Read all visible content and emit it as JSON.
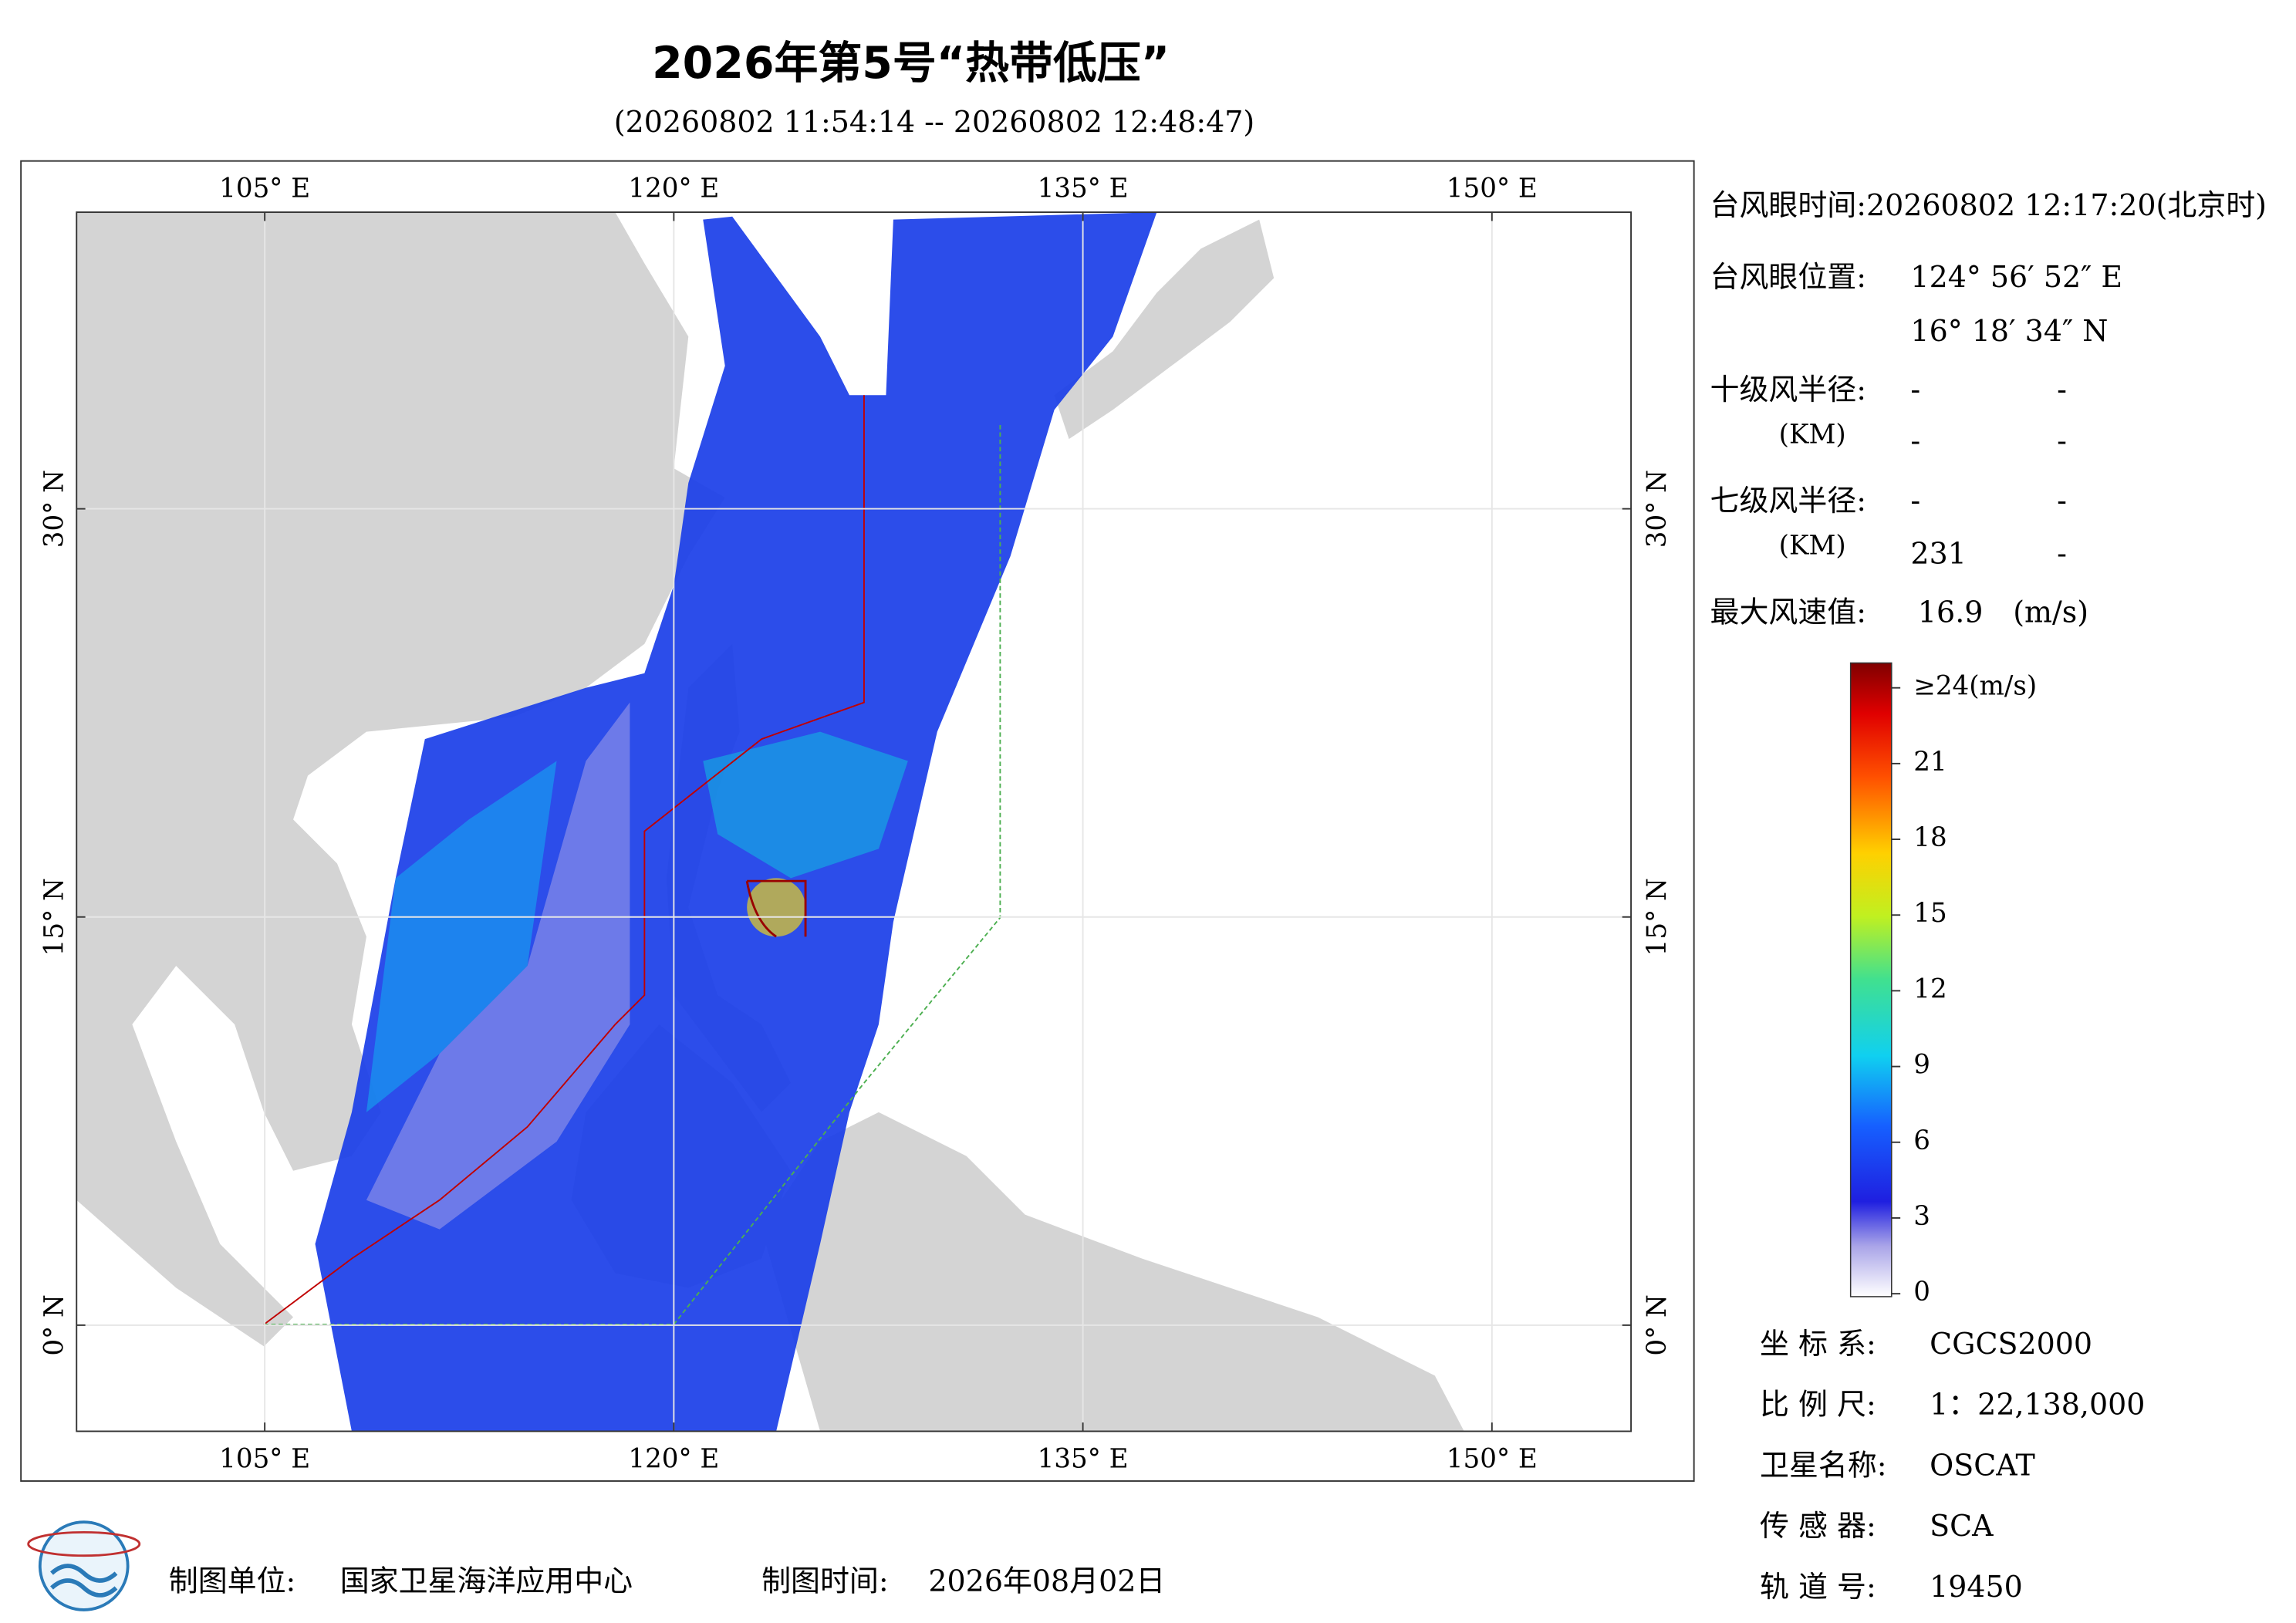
{
  "title": "2026年第5号“热带低压”",
  "subtitle": "(20260802 11:54:14 -- 20260802 12:48:47)",
  "map": {
    "xlim": [
      98.1,
      155.1
    ],
    "ylim": [
      -3.9,
      40.9
    ],
    "xticks": [
      {
        "value": 105,
        "label": "105° E"
      },
      {
        "value": 120,
        "label": "120° E"
      },
      {
        "value": 135,
        "label": "135° E"
      },
      {
        "value": 150,
        "label": "150° E"
      }
    ],
    "yticks": [
      {
        "value": 0,
        "label": "0° N"
      },
      {
        "value": 15,
        "label": "15° N"
      },
      {
        "value": 30,
        "label": "30° N"
      }
    ],
    "grid": true
  },
  "info": {
    "eye_time": "台风眼时间:20260802 12:17:20(北京时)",
    "eye_position_label": "台风眼位置:",
    "eye_lon": "124° 56′ 52″ E",
    "eye_lat": "16° 18′ 34″ N",
    "r10_label": "十级风半径:",
    "r10_unit": "(KM)",
    "r10_values": [
      "-",
      "-",
      "-",
      "-"
    ],
    "r7_label": "七级风半径:",
    "r7_unit": "(KM)",
    "r7_values": [
      "-",
      "-",
      "231",
      "-"
    ],
    "max_wind_label": "最大风速值:",
    "max_wind": "16.9",
    "max_wind_unit": "(m/s)"
  },
  "colorbar": {
    "range": [
      0,
      24
    ],
    "ticks": [
      0,
      3,
      6,
      9,
      12,
      15,
      18,
      21,
      {
        "value": 24,
        "label": "≥24(m/s)"
      }
    ]
  },
  "metadata": [
    {
      "label": "坐 标 系:",
      "value": "CGCS2000"
    },
    {
      "label": "比 例 尺:",
      "value": "1：22,138,000"
    },
    {
      "label": "卫星名称:",
      "value": "OSCAT"
    },
    {
      "label": "传 感 器:",
      "value": "SCA"
    },
    {
      "label": "轨 道 号:",
      "value": "19450"
    }
  ],
  "footer": {
    "unit_label": "制图单位:",
    "unit": "国家卫星海洋应用中心",
    "time_label": "制图时间:",
    "time": "2026年08月02日"
  }
}
